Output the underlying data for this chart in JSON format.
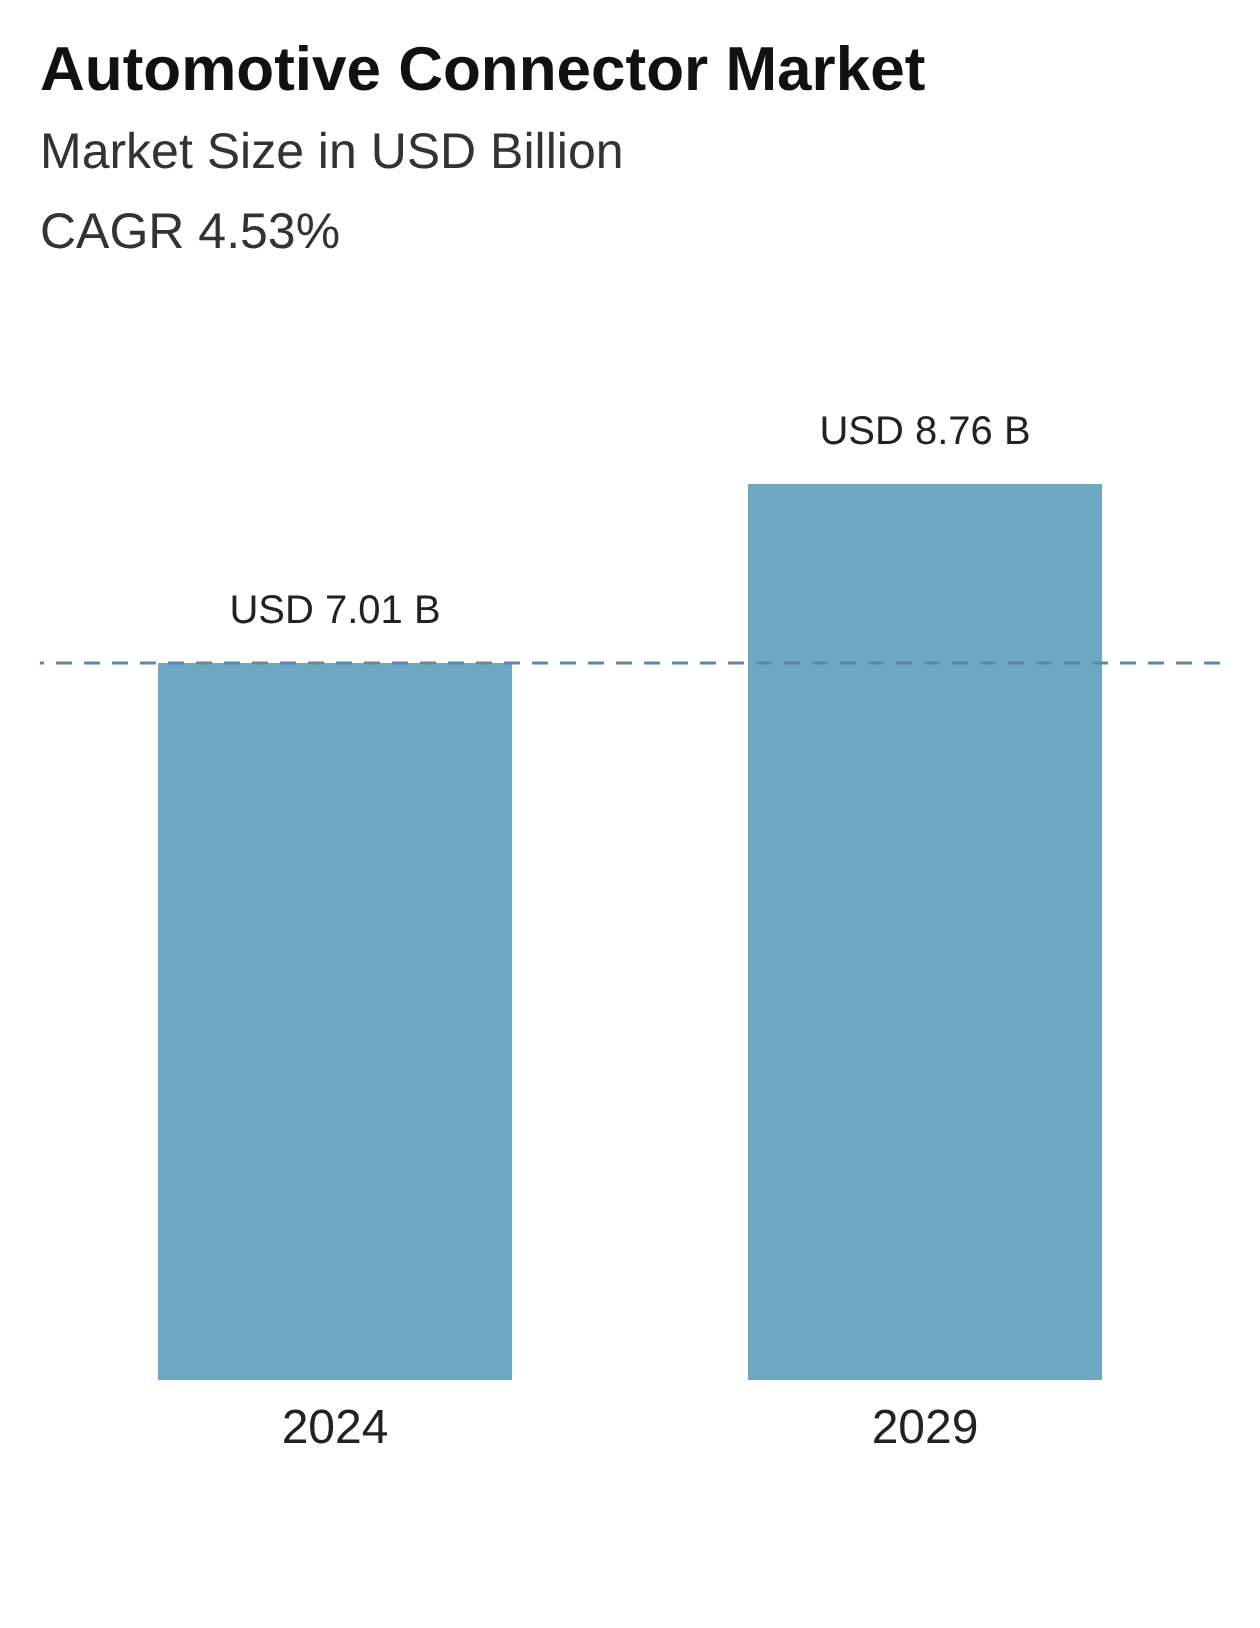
{
  "chart_data": {
    "type": "bar",
    "title": "Automotive Connector Market",
    "subtitle": "Market Size in USD Billion",
    "annotations": [
      "CAGR 4.53%"
    ],
    "categories": [
      "2024",
      "2029"
    ],
    "values": [
      7.01,
      8.76
    ],
    "color": "#6ea8c0",
    "value_labels": [
      "USD 7.01 B",
      "USD 8.76 B"
    ],
    "ref_lines": [
      {
        "axis": "y",
        "value": 7.01,
        "color": "#5a88a6",
        "line_style": "dashed"
      }
    ]
  }
}
